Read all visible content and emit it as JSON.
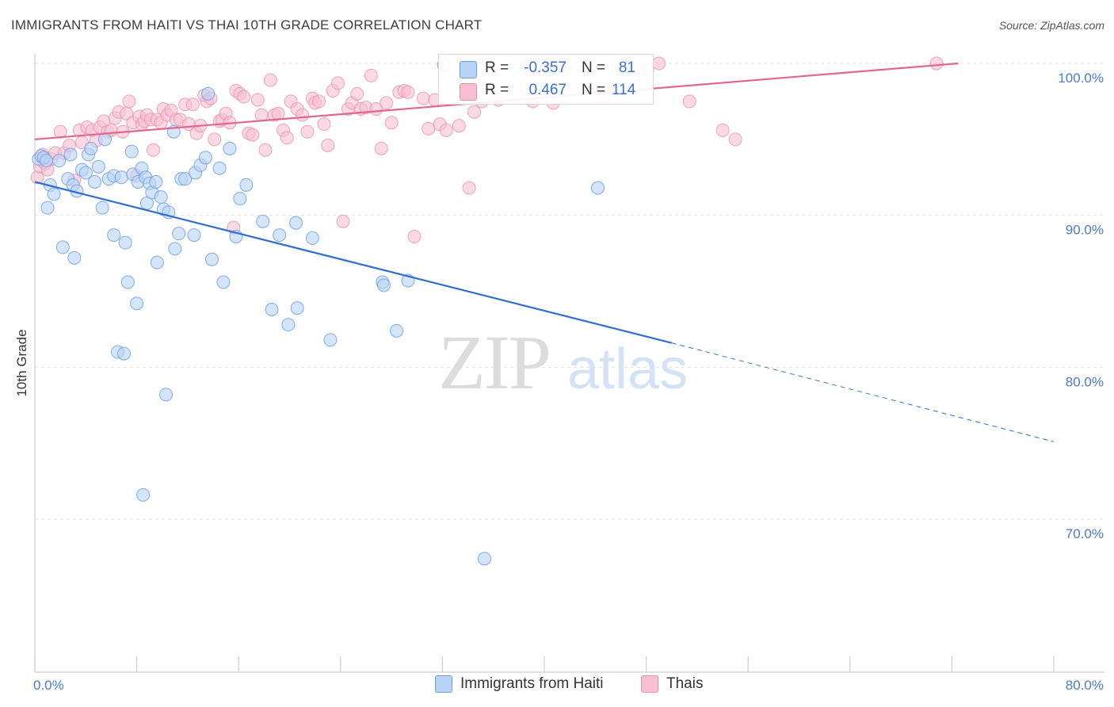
{
  "title": "IMMIGRANTS FROM HAITI VS THAI 10TH GRADE CORRELATION CHART",
  "source": "Source: ZipAtlas.com",
  "colors": {
    "haiti_fill": "#b7d3f5",
    "haiti_stroke": "#6f9ee0",
    "haiti_line": "#2f6fd3",
    "thai_fill": "#f7bfd2",
    "thai_stroke": "#ea8fb0",
    "thai_line": "#e2678f",
    "tick_text": "#4a7bd0",
    "grid": "#e2e2e2"
  },
  "watermark": {
    "zip": "ZIP",
    "atlas": "atlas"
  },
  "legend": {
    "rows": [
      {
        "r_label": "R =",
        "r_value": "-0.357",
        "n_label": "N =",
        "n_value": "81",
        "series": "haiti"
      },
      {
        "r_label": "R =",
        "r_value": "0.467",
        "n_label": "N =",
        "n_value": "114",
        "series": "thai"
      }
    ]
  },
  "bottom_legend": [
    {
      "label": "Immigrants from Haiti",
      "series": "haiti"
    },
    {
      "label": "Thais",
      "series": "thai"
    }
  ],
  "chart_data": {
    "type": "scatter",
    "title": "IMMIGRANTS FROM HAITI VS THAI 10TH GRADE CORRELATION CHART",
    "xlabel": "",
    "ylabel": "10th Grade",
    "xlim": [
      0,
      80
    ],
    "ylim": [
      60.5,
      101.5
    ],
    "x_tick_labels": [
      "0.0%",
      "80.0%"
    ],
    "y_ticks": [
      70,
      80,
      90,
      100
    ],
    "y_tick_labels": [
      "70.0%",
      "80.0%",
      "90.0%",
      "100.0%"
    ],
    "grid": true,
    "legend_position": "top-center",
    "series": [
      {
        "name": "Immigrants from Haiti",
        "color": "#b7d3f5",
        "r": -0.357,
        "n": 81,
        "trend": {
          "x": [
            0,
            50
          ],
          "y": [
            92.2,
            81.6
          ],
          "dashed_to": {
            "x": 80,
            "y": 75.1
          }
        },
        "points": [
          [
            0.3,
            93.7
          ],
          [
            0.5,
            93.9
          ],
          [
            0.7,
            93.8
          ],
          [
            0.9,
            93.6
          ],
          [
            1.0,
            90.5
          ],
          [
            1.2,
            92.0
          ],
          [
            1.5,
            91.4
          ],
          [
            1.9,
            93.6
          ],
          [
            2.2,
            87.9
          ],
          [
            2.6,
            92.4
          ],
          [
            2.8,
            94.0
          ],
          [
            3.0,
            92.0
          ],
          [
            3.1,
            87.2
          ],
          [
            3.3,
            91.6
          ],
          [
            3.7,
            93.0
          ],
          [
            4.0,
            92.8
          ],
          [
            4.2,
            94.0
          ],
          [
            4.4,
            94.4
          ],
          [
            4.7,
            92.2
          ],
          [
            5.0,
            93.2
          ],
          [
            5.3,
            90.5
          ],
          [
            5.5,
            95.0
          ],
          [
            5.8,
            92.4
          ],
          [
            6.2,
            92.6
          ],
          [
            6.2,
            88.7
          ],
          [
            6.5,
            81.0
          ],
          [
            6.8,
            92.5
          ],
          [
            7.0,
            80.9
          ],
          [
            7.1,
            88.2
          ],
          [
            7.3,
            85.6
          ],
          [
            7.6,
            94.2
          ],
          [
            7.7,
            92.7
          ],
          [
            8.0,
            84.2
          ],
          [
            8.1,
            92.2
          ],
          [
            8.4,
            93.1
          ],
          [
            8.5,
            71.6
          ],
          [
            8.7,
            92.5
          ],
          [
            8.8,
            90.8
          ],
          [
            9.0,
            92.1
          ],
          [
            9.2,
            91.5
          ],
          [
            9.5,
            92.2
          ],
          [
            9.6,
            86.9
          ],
          [
            9.9,
            91.2
          ],
          [
            10.1,
            90.4
          ],
          [
            10.3,
            78.2
          ],
          [
            10.5,
            90.2
          ],
          [
            10.9,
            95.5
          ],
          [
            11.0,
            87.8
          ],
          [
            11.3,
            88.8
          ],
          [
            11.5,
            92.4
          ],
          [
            11.8,
            92.4
          ],
          [
            12.5,
            88.7
          ],
          [
            12.6,
            92.8
          ],
          [
            13.0,
            93.3
          ],
          [
            13.4,
            93.8
          ],
          [
            13.6,
            98.0
          ],
          [
            13.9,
            87.1
          ],
          [
            14.5,
            93.1
          ],
          [
            14.8,
            85.6
          ],
          [
            15.3,
            94.4
          ],
          [
            15.8,
            88.6
          ],
          [
            16.1,
            91.1
          ],
          [
            16.6,
            92.0
          ],
          [
            17.9,
            89.6
          ],
          [
            18.6,
            83.8
          ],
          [
            19.2,
            88.7
          ],
          [
            19.9,
            82.8
          ],
          [
            20.5,
            89.5
          ],
          [
            20.6,
            83.9
          ],
          [
            21.8,
            88.5
          ],
          [
            23.2,
            81.8
          ],
          [
            27.3,
            85.6
          ],
          [
            27.4,
            85.4
          ],
          [
            28.4,
            82.4
          ],
          [
            29.3,
            85.7
          ],
          [
            32.1,
            99.9
          ],
          [
            35.3,
            67.4
          ],
          [
            37.6,
            99.6
          ],
          [
            40.2,
            98.5
          ],
          [
            44.2,
            91.8
          ],
          [
            47.0,
            99.0
          ]
        ]
      },
      {
        "name": "Thais",
        "color": "#f7bfd2",
        "r": 0.467,
        "n": 114,
        "trend": {
          "x": [
            0,
            72.5
          ],
          "y": [
            95.0,
            100.0
          ]
        },
        "points": [
          [
            0.2,
            92.5
          ],
          [
            0.4,
            93.2
          ],
          [
            0.6,
            94.0
          ],
          [
            0.8,
            93.4
          ],
          [
            1.0,
            93.0
          ],
          [
            1.3,
            93.7
          ],
          [
            1.6,
            94.1
          ],
          [
            2.0,
            95.5
          ],
          [
            2.3,
            94.1
          ],
          [
            2.7,
            94.6
          ],
          [
            3.1,
            92.3
          ],
          [
            3.5,
            95.6
          ],
          [
            3.7,
            94.8
          ],
          [
            4.1,
            95.8
          ],
          [
            4.5,
            95.6
          ],
          [
            4.8,
            94.9
          ],
          [
            5.1,
            95.8
          ],
          [
            5.4,
            96.2
          ],
          [
            5.7,
            95.5
          ],
          [
            6.0,
            95.6
          ],
          [
            6.3,
            96.4
          ],
          [
            6.6,
            96.8
          ],
          [
            6.9,
            95.5
          ],
          [
            7.2,
            96.7
          ],
          [
            7.4,
            97.5
          ],
          [
            7.7,
            96.1
          ],
          [
            8.0,
            92.6
          ],
          [
            8.2,
            96.5
          ],
          [
            8.4,
            96.0
          ],
          [
            8.6,
            96.2
          ],
          [
            8.8,
            96.6
          ],
          [
            9.1,
            96.3
          ],
          [
            9.3,
            94.3
          ],
          [
            9.6,
            96.3
          ],
          [
            9.9,
            96.1
          ],
          [
            10.1,
            97.0
          ],
          [
            10.4,
            96.6
          ],
          [
            10.7,
            96.9
          ],
          [
            11.1,
            96.3
          ],
          [
            11.4,
            96.3
          ],
          [
            11.8,
            97.3
          ],
          [
            12.1,
            96.0
          ],
          [
            12.4,
            97.3
          ],
          [
            12.7,
            95.4
          ],
          [
            13.0,
            95.9
          ],
          [
            13.3,
            97.9
          ],
          [
            13.5,
            97.5
          ],
          [
            13.8,
            97.7
          ],
          [
            14.1,
            95.0
          ],
          [
            14.5,
            96.2
          ],
          [
            14.7,
            96.3
          ],
          [
            15.0,
            96.7
          ],
          [
            15.3,
            96.1
          ],
          [
            15.6,
            89.2
          ],
          [
            15.8,
            98.2
          ],
          [
            16.1,
            98.0
          ],
          [
            16.4,
            97.8
          ],
          [
            16.8,
            95.4
          ],
          [
            17.1,
            95.3
          ],
          [
            17.5,
            97.6
          ],
          [
            17.8,
            96.6
          ],
          [
            18.1,
            94.3
          ],
          [
            18.5,
            98.9
          ],
          [
            18.8,
            96.6
          ],
          [
            19.1,
            96.7
          ],
          [
            19.5,
            95.6
          ],
          [
            19.8,
            95.1
          ],
          [
            20.1,
            97.5
          ],
          [
            20.6,
            97.0
          ],
          [
            21.0,
            96.6
          ],
          [
            21.4,
            95.5
          ],
          [
            21.8,
            97.7
          ],
          [
            22.0,
            97.4
          ],
          [
            22.3,
            97.5
          ],
          [
            22.7,
            96.0
          ],
          [
            23.0,
            94.6
          ],
          [
            23.4,
            98.2
          ],
          [
            23.8,
            98.7
          ],
          [
            24.2,
            89.6
          ],
          [
            24.6,
            97.0
          ],
          [
            24.9,
            97.4
          ],
          [
            25.3,
            98.0
          ],
          [
            25.6,
            97.0
          ],
          [
            26.0,
            97.1
          ],
          [
            26.4,
            99.2
          ],
          [
            26.8,
            97.0
          ],
          [
            27.2,
            94.4
          ],
          [
            27.6,
            97.4
          ],
          [
            28.0,
            96.1
          ],
          [
            28.6,
            98.1
          ],
          [
            29.0,
            98.2
          ],
          [
            29.3,
            98.1
          ],
          [
            29.8,
            88.6
          ],
          [
            30.5,
            97.7
          ],
          [
            30.9,
            95.7
          ],
          [
            31.4,
            97.6
          ],
          [
            31.8,
            96.0
          ],
          [
            32.3,
            95.6
          ],
          [
            32.7,
            98.4
          ],
          [
            33.3,
            95.9
          ],
          [
            34.1,
            91.8
          ],
          [
            34.5,
            96.8
          ],
          [
            35.1,
            97.5
          ],
          [
            36.4,
            97.6
          ],
          [
            38.6,
            99.8
          ],
          [
            39.1,
            97.5
          ],
          [
            40.7,
            97.4
          ],
          [
            41.7,
            99.8
          ],
          [
            44.6,
            97.8
          ],
          [
            48.1,
            99.6
          ],
          [
            49.0,
            100.0
          ],
          [
            51.4,
            97.5
          ],
          [
            54.0,
            95.6
          ],
          [
            55.0,
            95.0
          ],
          [
            70.8,
            100.0
          ]
        ]
      }
    ]
  }
}
